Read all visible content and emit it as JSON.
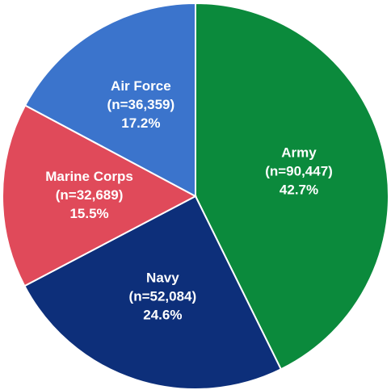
{
  "chart_data": {
    "type": "pie",
    "categories": [
      "Army",
      "Navy",
      "Marine Corps",
      "Air Force"
    ],
    "count_labels": [
      "(n=90,447)",
      "(n=52,084)",
      "(n=32,689)",
      "(n=36,359)"
    ],
    "values": [
      42.7,
      24.6,
      15.5,
      17.2
    ],
    "value_labels": [
      "42.7%",
      "24.6%",
      "15.5%",
      "17.2%"
    ],
    "colors": [
      "#0b8a3c",
      "#0d2f7a",
      "#e04a5a",
      "#3b74cc"
    ]
  }
}
